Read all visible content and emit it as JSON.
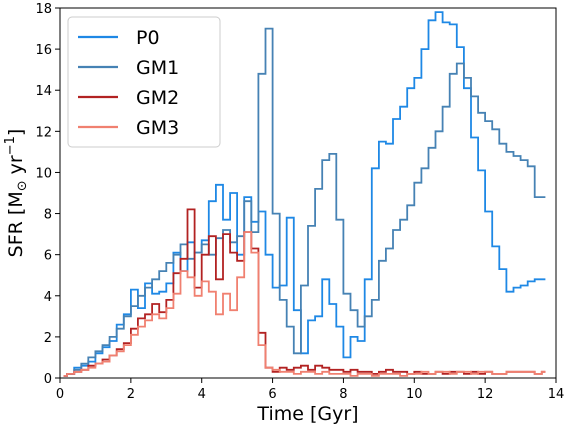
{
  "chart_data": {
    "type": "line",
    "step": true,
    "xlabel": "Time [Gyr]",
    "ylabel_main": "SFR [M",
    "ylabel_sub": "⊙",
    "ylabel_mid": " yr",
    "ylabel_sup": "−1",
    "ylabel_end": "]",
    "xlim": [
      0,
      14
    ],
    "ylim": [
      0,
      18
    ],
    "xticks": [
      0,
      2,
      4,
      6,
      8,
      10,
      12,
      14
    ],
    "yticks": [
      0,
      2,
      4,
      6,
      8,
      10,
      12,
      14,
      16,
      18
    ],
    "legend_position": "top-left",
    "series": [
      {
        "name": "P0",
        "color": "#1e88e5",
        "x": [
          0.1,
          0.2,
          0.4,
          0.6,
          0.8,
          1.0,
          1.2,
          1.4,
          1.6,
          1.8,
          2.0,
          2.2,
          2.4,
          2.6,
          2.8,
          3.0,
          3.2,
          3.4,
          3.6,
          3.8,
          4.0,
          4.2,
          4.4,
          4.6,
          4.8,
          5.0,
          5.2,
          5.4,
          5.6,
          5.8,
          6.0,
          6.2,
          6.4,
          6.6,
          6.8,
          7.0,
          7.2,
          7.4,
          7.6,
          7.8,
          8.0,
          8.2,
          8.4,
          8.6,
          8.8,
          9.0,
          9.2,
          9.4,
          9.6,
          9.8,
          10.0,
          10.2,
          10.4,
          10.6,
          10.8,
          11.0,
          11.2,
          11.4,
          11.6,
          11.8,
          12.0,
          12.2,
          12.4,
          12.6,
          12.8,
          13.0,
          13.2,
          13.4,
          13.6
        ],
        "y": [
          0.1,
          0.2,
          0.5,
          0.6,
          0.8,
          1.2,
          1.5,
          1.8,
          2.6,
          3.1,
          4.3,
          3.4,
          4.6,
          4.1,
          4.2,
          4.6,
          6.1,
          5.2,
          6.6,
          6.1,
          6.7,
          8.6,
          9.4,
          7.7,
          9.0,
          6.0,
          8.8,
          7.6,
          8.1,
          6.0,
          4.4,
          4.5,
          7.8,
          3.3,
          1.2,
          2.8,
          3.0,
          4.8,
          3.6,
          2.5,
          1.0,
          2.0,
          1.8,
          4.8,
          10.2,
          11.5,
          11.4,
          12.6,
          13.2,
          14.1,
          14.6,
          16.0,
          17.4,
          17.8,
          17.3,
          17.2,
          16.1,
          14.1,
          11.7,
          10.1,
          8.1,
          6.4,
          5.3,
          4.2,
          4.4,
          4.5,
          4.7,
          4.8,
          4.8
        ]
      },
      {
        "name": "GM1",
        "color": "#4682b4",
        "x": [
          0.1,
          0.2,
          0.4,
          0.6,
          0.8,
          1.0,
          1.2,
          1.4,
          1.6,
          1.8,
          2.0,
          2.2,
          2.4,
          2.6,
          2.8,
          3.0,
          3.2,
          3.4,
          3.6,
          3.8,
          4.0,
          4.2,
          4.4,
          4.6,
          4.8,
          5.0,
          5.2,
          5.4,
          5.6,
          5.8,
          6.0,
          6.2,
          6.4,
          6.6,
          6.8,
          7.0,
          7.2,
          7.4,
          7.6,
          7.8,
          8.0,
          8.2,
          8.4,
          8.6,
          8.8,
          9.0,
          9.2,
          9.4,
          9.6,
          9.8,
          10.0,
          10.2,
          10.4,
          10.6,
          10.8,
          11.0,
          11.2,
          11.4,
          11.6,
          11.8,
          12.0,
          12.2,
          12.4,
          12.6,
          12.8,
          13.0,
          13.2,
          13.4,
          13.6
        ],
        "y": [
          0.1,
          0.2,
          0.4,
          0.7,
          1.0,
          1.3,
          1.6,
          2.0,
          2.4,
          3.0,
          3.5,
          4.0,
          4.4,
          4.8,
          5.2,
          5.6,
          6.0,
          6.5,
          5.8,
          6.1,
          6.5,
          6.0,
          6.8,
          7.2,
          6.6,
          6.9,
          8.6,
          7.1,
          14.8,
          17.0,
          8.0,
          3.8,
          2.5,
          1.2,
          4.5,
          7.4,
          9.2,
          10.6,
          10.9,
          7.7,
          4.1,
          3.3,
          2.5,
          3.0,
          3.8,
          5.7,
          6.3,
          7.2,
          7.7,
          8.4,
          9.5,
          10.2,
          11.2,
          12.0,
          13.2,
          14.8,
          15.3,
          14.6,
          13.7,
          12.9,
          12.5,
          12.1,
          11.4,
          11.0,
          10.8,
          10.6,
          10.3,
          8.8,
          8.8
        ]
      },
      {
        "name": "GM2",
        "color": "#b22222",
        "x": [
          0.1,
          0.2,
          0.4,
          0.6,
          0.8,
          1.0,
          1.2,
          1.4,
          1.6,
          1.8,
          2.0,
          2.2,
          2.4,
          2.6,
          2.8,
          3.0,
          3.2,
          3.4,
          3.6,
          3.8,
          4.0,
          4.2,
          4.4,
          4.6,
          4.8,
          5.0,
          5.2,
          5.4,
          5.6,
          5.8,
          6.0,
          6.2,
          6.4,
          6.6,
          6.8,
          7.0,
          7.2,
          7.4,
          7.6,
          7.8,
          8.0,
          8.2,
          8.4,
          8.6,
          8.8,
          9.0,
          9.2,
          9.4,
          9.6,
          9.8,
          10.0,
          10.2,
          10.4,
          10.6,
          10.8,
          11.0,
          11.2,
          11.4,
          11.6,
          11.8,
          12.0,
          12.2,
          12.4,
          12.6,
          12.8,
          13.0,
          13.2,
          13.4,
          13.6
        ],
        "y": [
          0.1,
          0.2,
          0.3,
          0.4,
          0.6,
          0.7,
          0.9,
          1.1,
          1.4,
          1.7,
          2.4,
          2.9,
          3.1,
          3.6,
          3.2,
          3.8,
          5.1,
          5.8,
          8.2,
          4.4,
          6.0,
          6.9,
          4.8,
          7.0,
          6.1,
          5.7,
          7.1,
          6.3,
          2.2,
          0.5,
          0.3,
          0.5,
          0.4,
          0.5,
          0.6,
          0.4,
          0.6,
          0.5,
          0.4,
          0.4,
          0.3,
          0.4,
          0.3,
          0.3,
          0.2,
          0.3,
          0.4,
          0.3,
          0.3,
          0.2,
          0.3,
          0.2,
          0.2,
          0.3,
          0.2,
          0.3,
          0.3,
          0.2,
          0.3,
          0.2,
          0.3,
          0.2,
          0.2,
          0.3,
          0.3,
          0.3,
          0.3,
          0.2,
          0.3
        ]
      },
      {
        "name": "GM3",
        "color": "#f08070",
        "x": [
          0.1,
          0.2,
          0.4,
          0.6,
          0.8,
          1.0,
          1.2,
          1.4,
          1.6,
          1.8,
          2.0,
          2.2,
          2.4,
          2.6,
          2.8,
          3.0,
          3.2,
          3.4,
          3.6,
          3.8,
          4.0,
          4.2,
          4.4,
          4.6,
          4.8,
          5.0,
          5.2,
          5.4,
          5.6,
          5.8,
          6.0,
          6.2,
          6.4,
          6.6,
          6.8,
          7.0,
          7.2,
          7.4,
          7.6,
          7.8,
          8.0,
          8.2,
          8.4,
          8.6,
          8.8,
          9.0,
          9.2,
          9.4,
          9.6,
          9.8,
          10.0,
          10.2,
          10.4,
          10.6,
          10.8,
          11.0,
          11.2,
          11.4,
          11.6,
          11.8,
          12.0,
          12.2,
          12.4,
          12.6,
          12.8,
          13.0,
          13.2,
          13.4,
          13.6
        ],
        "y": [
          0.1,
          0.2,
          0.3,
          0.4,
          0.5,
          0.7,
          0.8,
          1.1,
          1.3,
          1.6,
          2.1,
          2.5,
          2.8,
          3.1,
          2.9,
          3.4,
          4.1,
          5.2,
          4.9,
          4.0,
          4.7,
          4.2,
          3.1,
          4.1,
          3.3,
          4.9,
          7.1,
          6.1,
          1.6,
          0.5,
          0.4,
          0.3,
          0.3,
          0.2,
          0.3,
          0.3,
          0.2,
          0.3,
          0.2,
          0.2,
          0.2,
          0.1,
          0.2,
          0.2,
          0.1,
          0.2,
          0.2,
          0.2,
          0.1,
          0.2,
          0.2,
          0.3,
          0.2,
          0.3,
          0.3,
          0.2,
          0.3,
          0.3,
          0.2,
          0.3,
          0.3,
          0.2,
          0.2,
          0.3,
          0.3,
          0.3,
          0.3,
          0.2,
          0.3
        ]
      }
    ]
  }
}
